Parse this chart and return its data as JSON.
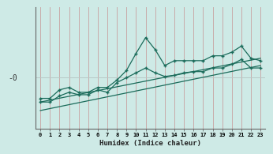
{
  "xlabel": "Humidex (Indice chaleur)",
  "ylabel": "-0",
  "background_color": "#ceeae6",
  "line_color": "#1a6b5a",
  "vgrid_color": "#c8a0a0",
  "hgrid_color": "#b8c8c6",
  "x_ticks": [
    0,
    1,
    2,
    3,
    4,
    5,
    6,
    7,
    8,
    9,
    10,
    11,
    12,
    13,
    14,
    15,
    16,
    17,
    18,
    19,
    20,
    21,
    22,
    23
  ],
  "xlim": [
    -0.5,
    23.5
  ],
  "ylim": [
    0,
    100
  ],
  "hline_y": 42,
  "series1_x": [
    0,
    1,
    2,
    3,
    4,
    5,
    6,
    7,
    8,
    9,
    10,
    11,
    12,
    13,
    14,
    15,
    16,
    17,
    18,
    19,
    20,
    21,
    22,
    23
  ],
  "series1_y": [
    25,
    25,
    32,
    34,
    30,
    30,
    34,
    34,
    40,
    48,
    62,
    75,
    65,
    52,
    56,
    56,
    56,
    56,
    60,
    60,
    63,
    68,
    58,
    56
  ],
  "series2_x": [
    0,
    1,
    2,
    3,
    4,
    5,
    6,
    7,
    8,
    9,
    10,
    11,
    12,
    13,
    14,
    15,
    16,
    17,
    18,
    19,
    20,
    21,
    22,
    23
  ],
  "series2_y": [
    22,
    22,
    27,
    30,
    28,
    28,
    32,
    30,
    38,
    42,
    46,
    50,
    46,
    43,
    44,
    46,
    47,
    47,
    50,
    50,
    53,
    57,
    50,
    50
  ],
  "trend1_x": [
    0,
    23
  ],
  "trend1_y": [
    22,
    58
  ],
  "trend2_x": [
    0,
    23
  ],
  "trend2_y": [
    15,
    52
  ]
}
